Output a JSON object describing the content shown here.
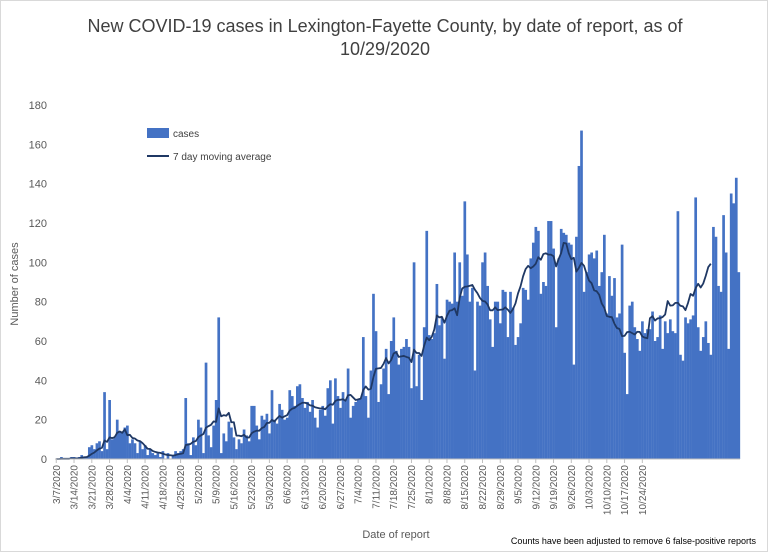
{
  "chart_data": {
    "type": "bar",
    "title_line1": "New COVID-19 cases in Lexington-Fayette County, by date of report, as of",
    "title_line2": "10/29/2020",
    "xlabel": "Date of report",
    "ylabel": "Number of cases",
    "ylim": [
      0,
      180
    ],
    "yticks": [
      0,
      20,
      40,
      60,
      80,
      100,
      120,
      140,
      160,
      180
    ],
    "grid": false,
    "legend_position": "top-left",
    "footnote": "Counts have been adjusted to remove 6 false-positive reports",
    "xtick_labels": [
      "3/7/2020",
      "3/14/2020",
      "3/21/2020",
      "3/28/2020",
      "4/4/2020",
      "4/11/2020",
      "4/18/2020",
      "4/25/2020",
      "5/2/2020",
      "5/9/2020",
      "5/16/2020",
      "5/23/2020",
      "5/30/2020",
      "6/6/2020",
      "6/13/2020",
      "6/20/2020",
      "6/27/2020",
      "7/4/2020",
      "7/11/2020",
      "7/18/2020",
      "7/25/2020",
      "8/1/2020",
      "8/8/2020",
      "8/15/2020",
      "8/22/2020",
      "8/29/2020",
      "9/5/2020",
      "9/12/2020",
      "9/19/2020",
      "9/26/2020",
      "10/3/2020",
      "10/10/2020",
      "10/17/2020",
      "10/24/2020"
    ],
    "series": [
      {
        "name": "cases",
        "kind": "bar",
        "color": "#4472c4",
        "values": [
          0,
          0,
          1,
          0,
          0,
          0,
          1,
          1,
          0,
          1,
          2,
          1,
          1,
          6,
          7,
          5,
          8,
          9,
          4,
          34,
          5,
          30,
          10,
          11,
          20,
          14,
          14,
          16,
          17,
          8,
          10,
          8,
          3,
          9,
          5,
          7,
          2,
          5,
          3,
          2,
          3,
          1,
          4,
          0,
          3,
          0,
          2,
          4,
          3,
          4,
          5,
          31,
          8,
          2,
          11,
          7,
          20,
          16,
          3,
          49,
          12,
          6,
          17,
          30,
          72,
          3,
          13,
          9,
          19,
          16,
          11,
          5,
          10,
          8,
          15,
          12,
          9,
          27,
          27,
          17,
          10,
          22,
          20,
          23,
          13,
          35,
          20,
          18,
          28,
          25,
          20,
          21,
          35,
          32,
          27,
          37,
          38,
          31,
          26,
          29,
          24,
          30,
          21,
          16,
          25,
          27,
          22,
          36,
          40,
          18,
          41,
          32,
          26,
          34,
          30,
          46,
          21,
          27,
          29,
          30,
          31,
          62,
          32,
          21,
          45,
          84,
          65,
          29,
          38,
          46,
          56,
          33,
          60,
          72,
          55,
          48,
          56,
          57,
          61,
          57,
          36,
          100,
          37,
          53,
          30,
          67,
          116,
          63,
          61,
          64,
          89,
          68,
          72,
          51,
          81,
          80,
          79,
          105,
          80,
          100,
          83,
          131,
          104,
          80,
          87,
          45,
          80,
          78,
          100,
          105,
          88,
          71,
          57,
          80,
          80,
          69,
          86,
          85,
          62,
          85,
          77,
          58,
          62,
          69,
          87,
          86,
          81,
          102,
          110,
          118,
          116,
          84,
          90,
          88,
          121,
          121,
          107,
          67,
          102,
          117,
          115,
          114,
          110,
          109,
          48,
          113,
          149,
          167,
          85,
          95,
          104,
          105,
          102,
          106,
          88,
          95,
          114,
          74,
          93,
          83,
          92,
          72,
          74,
          109,
          54,
          33,
          78,
          80,
          67,
          61,
          55,
          70,
          64,
          66,
          66,
          75,
          60,
          62,
          73,
          56,
          70,
          64,
          71,
          65,
          64,
          126,
          53,
          50,
          72,
          69,
          71,
          73,
          133,
          67,
          55,
          62,
          70,
          59,
          53,
          118,
          113,
          88,
          85,
          124,
          105,
          56,
          135,
          130,
          143,
          95
        ]
      },
      {
        "name": "7 day moving average",
        "kind": "line",
        "color": "#1f3864",
        "values": [
          0,
          0,
          0.1,
          0.1,
          0.1,
          0.1,
          0.3,
          0.3,
          0.3,
          0.4,
          0.7,
          0.9,
          1,
          1.7,
          2.6,
          3.3,
          4.4,
          5.3,
          5.7,
          9.4,
          8.7,
          11,
          10.6,
          11.1,
          13.3,
          14,
          13.3,
          15.1,
          12.1,
          12.3,
          10.7,
          10.4,
          9.4,
          9.1,
          8.1,
          6.7,
          5.2,
          5.1,
          4.1,
          3.6,
          3.3,
          3.1,
          2.7,
          2.3,
          2,
          1.9,
          1.7,
          2,
          2.4,
          2.6,
          2.9,
          7.1,
          7.3,
          7.7,
          8.8,
          9.1,
          11.1,
          12,
          12.7,
          15.9,
          16.7,
          17.4,
          19.1,
          18.9,
          25.7,
          21.7,
          22.3,
          22,
          23.5,
          18.7,
          18.7,
          11.9,
          11.9,
          11.6,
          12.3,
          11,
          10.9,
          13.1,
          13.9,
          14.4,
          14.4,
          15.7,
          16.3,
          18.3,
          18.4,
          19.9,
          19.1,
          20.6,
          21.9,
          21,
          21.7,
          22.3,
          24.6,
          25.6,
          26,
          27.1,
          27.9,
          28.6,
          28.6,
          28.2,
          27.3,
          27.1,
          26.3,
          26,
          25.7,
          25.8,
          25.3,
          26.8,
          27.9,
          27.6,
          29.5,
          30.1,
          30.1,
          30.4,
          29.6,
          32.4,
          32.6,
          31.3,
          30,
          30.3,
          30.7,
          35.1,
          36.9,
          35.3,
          35.7,
          41.6,
          45.9,
          46.1,
          46.3,
          48.4,
          51.3,
          48.6,
          50.3,
          53.7,
          54.3,
          51.9,
          52.2,
          52.4,
          51.9,
          51.5,
          49.3,
          55.6,
          53.9,
          53.9,
          52.4,
          57.6,
          61.7,
          60.4,
          62.1,
          65.9,
          73,
          72,
          72.3,
          69.3,
          72.8,
          75.4,
          75.7,
          76.6,
          73.1,
          81.9,
          86.7,
          87.6,
          87.7,
          88.1,
          88.5,
          86.1,
          84.3,
          81.9,
          80.4,
          80.1,
          78.6,
          75.6,
          75.6,
          77.1,
          75.7,
          75.9,
          76,
          77.1,
          75.9,
          74.3,
          76.2,
          79.1,
          84.2,
          87.8,
          92.9,
          96.6,
          98.2,
          97,
          97.9,
          99.3,
          102.6,
          101.3,
          104.2,
          104.6,
          103.9,
          103.9,
          103.1,
          97.9,
          101.6,
          104.7,
          109.9,
          109.6,
          104.6,
          101.6,
          102.3,
          95.3,
          97.2,
          99.7,
          98.3,
          94.3,
          90.7,
          89.4,
          85.8,
          85.3,
          83.5,
          79.1,
          76.9,
          72.7,
          72.3,
          72.1,
          68.8,
          66.6,
          66.1,
          62.5,
          62.6,
          64.5,
          64.7,
          64,
          63.3,
          64.7,
          64.6,
          62.3,
          61.7,
          61.4,
          71.6,
          72.6,
          70.4,
          71.5,
          71.6,
          72.2,
          73.5,
          80.3,
          78,
          78.1,
          79.4,
          79.4,
          77.9,
          77.6,
          75.7,
          79.3,
          83.9,
          83,
          86.9,
          89.1,
          87.2,
          89.2,
          93.1,
          97.6,
          99.3
        ]
      }
    ]
  }
}
